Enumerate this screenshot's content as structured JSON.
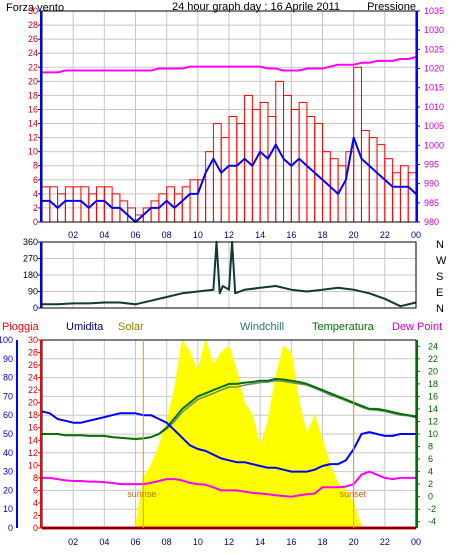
{
  "title": "24 hour graph day : 16 Aprile 2011",
  "colors": {
    "wind": "#ff0000",
    "gust": "#ff0000",
    "avg_wind": "#0000ff",
    "pressure": "#ff00ff",
    "direction": "#103838",
    "humidity": "#0000ff",
    "solar": "#ffff00",
    "windchill": "#6d8a6d",
    "temperature": "#007000",
    "dewpoint": "#ff00ff",
    "rain": "#ff0000",
    "axis": "#0000ff",
    "grid": "#c8c8c8"
  },
  "chart_data": [
    {
      "type": "line",
      "name": "wind_pressure",
      "labels": {
        "left": "Forza vento",
        "right": "Pressione"
      },
      "x_ticks": [
        "02",
        "04",
        "06",
        "08",
        "10",
        "12",
        "14",
        "16",
        "18",
        "20",
        "22",
        "00"
      ],
      "y_left_ticks": [
        0,
        2,
        4,
        6,
        8,
        10,
        12,
        14,
        16,
        18,
        20,
        22,
        24,
        26,
        28,
        30
      ],
      "y_right_ticks": [
        980,
        985,
        990,
        995,
        1000,
        1005,
        1010,
        1015,
        1020,
        1025,
        1030,
        1035
      ],
      "ylim_left": [
        0,
        30
      ],
      "ylim_right": [
        980,
        1035
      ],
      "x_hours": [
        0,
        0.5,
        1,
        1.5,
        2,
        2.5,
        3,
        3.5,
        4,
        4.5,
        5,
        5.5,
        6,
        6.5,
        7,
        7.5,
        8,
        8.5,
        9,
        9.5,
        10,
        10.5,
        11,
        11.5,
        12,
        12.5,
        13,
        13.5,
        14,
        14.5,
        15,
        15.5,
        16,
        16.5,
        17,
        17.5,
        18,
        18.5,
        19,
        19.5,
        20,
        20.5,
        21,
        21.5,
        22,
        22.5,
        23,
        23.5,
        24
      ],
      "series": [
        {
          "key": "gust",
          "values": [
            5,
            5,
            4,
            5,
            5,
            5,
            4,
            5,
            5,
            4,
            3,
            2,
            1,
            2,
            3,
            4,
            5,
            4,
            5,
            6,
            6,
            10,
            14,
            12,
            15,
            14,
            18,
            16,
            17,
            15,
            20,
            18,
            16,
            17,
            15,
            14,
            10,
            9,
            8,
            10,
            22,
            13,
            12,
            11,
            9,
            7,
            8,
            7,
            6
          ]
        },
        {
          "key": "avg_wind",
          "values": [
            3,
            3,
            2,
            3,
            3,
            3,
            2,
            3,
            3,
            2,
            2,
            1,
            0,
            1,
            2,
            2,
            3,
            2,
            3,
            4,
            4,
            7,
            9,
            7,
            8,
            8,
            9,
            8,
            10,
            9,
            11,
            9,
            8,
            9,
            8,
            7,
            6,
            5,
            4,
            6,
            12,
            9,
            8,
            7,
            6,
            5,
            5,
            5,
            4
          ]
        },
        {
          "key": "pressure",
          "values": [
            1019,
            1019,
            1019,
            1019.5,
            1019.5,
            1019.5,
            1019.5,
            1019.5,
            1019.5,
            1019.5,
            1019.5,
            1019.5,
            1019.5,
            1019.5,
            1019.5,
            1020,
            1020,
            1020,
            1020,
            1020.5,
            1020.5,
            1020.5,
            1020.5,
            1020.5,
            1020.5,
            1020.5,
            1020.5,
            1020.5,
            1020.5,
            1020,
            1020,
            1019.5,
            1019.5,
            1019.5,
            1020,
            1020,
            1020,
            1020.5,
            1021,
            1021,
            1021,
            1021.5,
            1021.5,
            1022,
            1022,
            1022,
            1022.5,
            1022.5,
            1023
          ]
        }
      ]
    },
    {
      "type": "line",
      "name": "wind_direction",
      "labels": {
        "compass": [
          "N",
          "W",
          "S",
          "E",
          "N"
        ]
      },
      "y_ticks": [
        0,
        90,
        180,
        270,
        360
      ],
      "ylim": [
        0,
        360
      ],
      "x_hours": [
        0,
        1,
        2,
        3,
        4,
        5,
        6,
        7,
        8,
        9,
        10,
        11,
        11.2,
        11.4,
        11.6,
        12,
        12.2,
        12.4,
        13,
        14,
        15,
        16,
        17,
        18,
        19,
        20,
        21,
        22,
        23,
        24
      ],
      "series": [
        {
          "key": "direction",
          "values": [
            20,
            20,
            25,
            25,
            30,
            30,
            20,
            40,
            60,
            80,
            90,
            100,
            360,
            80,
            120,
            100,
            360,
            80,
            100,
            110,
            120,
            100,
            90,
            100,
            110,
            100,
            80,
            50,
            10,
            30
          ]
        }
      ]
    },
    {
      "type": "line",
      "name": "temperature_humidity_solar",
      "labels": {
        "rain": "Pioggia",
        "humidity": "Umidita",
        "solar": "Solar",
        "windchill": "Windchill",
        "temperature": "Temperatura",
        "dewpoint": "Dew Point",
        "sunrise": "sunrise",
        "sunset": "sunset"
      },
      "sunrise_hour": 6.5,
      "sunset_hour": 20,
      "y_humidity_ticks": [
        0,
        10,
        20,
        30,
        40,
        50,
        60,
        70,
        80,
        90,
        100
      ],
      "y_rain_ticks": [
        0,
        2,
        4,
        6,
        8,
        10,
        12,
        14,
        16,
        18,
        20,
        22,
        24,
        26,
        28,
        30
      ],
      "y_temp_ticks": [
        -4,
        -2,
        0,
        2,
        4,
        6,
        8,
        10,
        12,
        14,
        16,
        18,
        20,
        22,
        24
      ],
      "ylim_humidity": [
        0,
        100
      ],
      "ylim_rain": [
        0,
        30
      ],
      "ylim_temp": [
        -5,
        25
      ],
      "x_hours": [
        0,
        0.5,
        1,
        1.5,
        2,
        2.5,
        3,
        3.5,
        4,
        4.5,
        5,
        5.5,
        6,
        6.5,
        7,
        7.5,
        8,
        8.5,
        9,
        9.5,
        10,
        10.5,
        11,
        11.5,
        12,
        12.5,
        13,
        13.5,
        14,
        14.5,
        15,
        15.5,
        16,
        16.5,
        17,
        17.5,
        18,
        18.5,
        19,
        19.5,
        20,
        20.5,
        21,
        21.5,
        22,
        22.5,
        23,
        23.5,
        24
      ],
      "series": [
        {
          "key": "humidity",
          "values": [
            62,
            61,
            58,
            57,
            56,
            56,
            57,
            58,
            59,
            60,
            61,
            61,
            61,
            60,
            60,
            58,
            56,
            52,
            48,
            44,
            42,
            41,
            39,
            37,
            36,
            35,
            35,
            34,
            33,
            32,
            32,
            31,
            30,
            30,
            30,
            31,
            33,
            34,
            34,
            36,
            42,
            50,
            51,
            50,
            49,
            49,
            50,
            50,
            50
          ]
        },
        {
          "key": "temperature",
          "values": [
            10,
            10,
            10,
            9.8,
            9.8,
            9.8,
            9.7,
            9.7,
            9.7,
            9.5,
            9.4,
            9.3,
            9.2,
            9.3,
            9.5,
            10,
            11,
            12.5,
            14,
            15,
            16,
            16.5,
            17,
            17.5,
            18,
            18,
            18.2,
            18.3,
            18.5,
            18.5,
            18.8,
            18.7,
            18.5,
            18.3,
            18,
            17.5,
            17,
            16.5,
            16,
            15.5,
            15,
            14.5,
            14,
            14,
            13.8,
            13.5,
            13.2,
            13,
            12.8
          ]
        },
        {
          "key": "windchill",
          "values": [
            10,
            10,
            10,
            9.8,
            9.8,
            9.8,
            9.7,
            9.7,
            9.7,
            9.5,
            9.4,
            9.3,
            9.2,
            9.3,
            9.5,
            10,
            10.8,
            12,
            13.5,
            14.5,
            15.5,
            16,
            16.5,
            17,
            17.5,
            17.5,
            17.8,
            18,
            18.2,
            18.3,
            18.5,
            18.4,
            18.2,
            18,
            17.8,
            17.3,
            16.8,
            16.2,
            15.8,
            15.3,
            14.8,
            14.3,
            13.9,
            13.8,
            13.6,
            13.3,
            13,
            12.9,
            12.6
          ]
        },
        {
          "key": "dewpoint",
          "values": [
            3,
            3,
            2.8,
            2.6,
            2.5,
            2.5,
            2.4,
            2.4,
            2.3,
            2.2,
            2,
            2,
            2,
            2,
            2.2,
            2.5,
            2.8,
            2.8,
            2.6,
            2.2,
            2,
            1.9,
            1.5,
            1,
            1,
            1,
            0.8,
            0.6,
            0.5,
            0.4,
            0.2,
            0.1,
            0,
            0.2,
            0.4,
            0.5,
            1.5,
            1.5,
            1.5,
            1.6,
            2,
            3.5,
            4,
            3.5,
            3,
            2.8,
            3,
            3,
            3
          ]
        },
        {
          "key": "solar",
          "values": [
            0,
            0,
            0,
            0,
            0,
            0,
            0,
            0,
            0,
            0,
            0,
            0,
            0,
            8,
            10,
            13,
            17,
            22,
            30,
            28,
            25,
            30,
            26,
            28,
            29,
            25,
            20,
            18,
            13,
            17,
            24,
            29,
            28,
            20,
            15,
            18,
            14,
            10,
            7,
            6,
            4,
            0,
            0,
            0,
            0,
            0,
            0,
            0,
            0
          ]
        },
        {
          "key": "rain",
          "values": [
            0,
            0,
            0,
            0,
            0,
            0,
            0,
            0,
            0,
            0,
            0,
            0,
            0,
            0,
            0,
            0,
            0,
            0,
            0,
            0,
            0,
            0,
            0,
            0,
            0,
            0,
            0,
            0,
            0,
            0,
            0,
            0,
            0,
            0,
            0,
            0,
            0,
            0,
            0,
            0,
            0,
            0,
            0,
            0,
            0,
            0,
            0,
            0,
            0
          ]
        }
      ]
    }
  ]
}
